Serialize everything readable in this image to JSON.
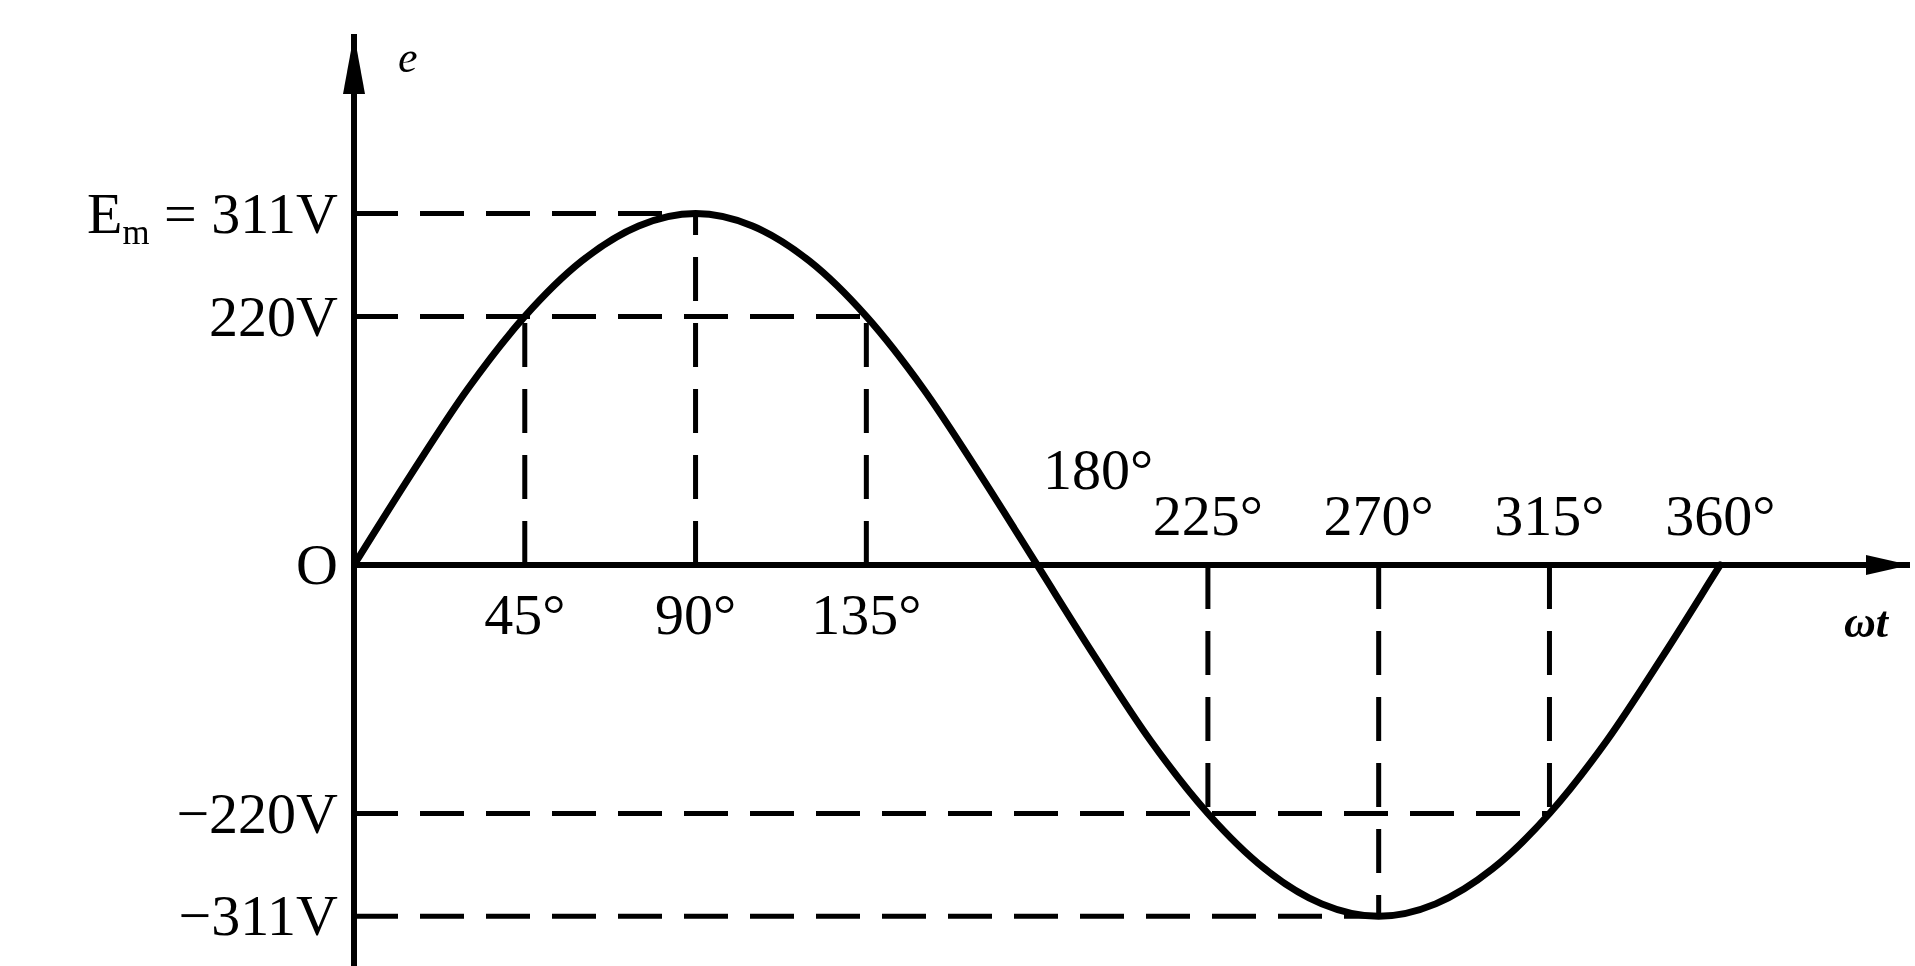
{
  "chart_data": {
    "type": "line",
    "xlabel": "ωt",
    "ylabel": "e",
    "x": [
      0,
      15,
      30,
      45,
      60,
      75,
      90,
      105,
      120,
      135,
      150,
      165,
      180,
      195,
      210,
      225,
      240,
      255,
      270,
      285,
      300,
      315,
      330,
      345,
      360
    ],
    "series": [
      {
        "color": "#000000",
        "values": [
          0,
          80,
          156,
          220,
          269,
          300,
          311,
          300,
          269,
          220,
          156,
          80,
          0,
          -80,
          -156,
          -220,
          -269,
          -300,
          -311,
          -300,
          -269,
          -220,
          -156,
          -80,
          0
        ]
      }
    ],
    "xlim": [
      0,
      410
    ],
    "ylim": [
      -355,
      470
    ],
    "x2lim": [
      0,
      410
    ],
    "xticks": [
      {
        "value": 45,
        "label": "45°"
      },
      {
        "value": 90,
        "label": "90°"
      },
      {
        "value": 135,
        "label": "135°"
      }
    ],
    "x2ticks": [
      {
        "value": 225,
        "label": "225°"
      },
      {
        "value": 270,
        "label": "270°"
      },
      {
        "value": 315,
        "label": "315°"
      },
      {
        "value": 360,
        "label": "360°"
      }
    ],
    "yticks": [
      {
        "value": 311,
        "label": "E$_{m}$ = 311V"
      },
      {
        "value": 220,
        "label": "220V"
      },
      {
        "value": 0,
        "label": "O"
      },
      {
        "value": -220,
        "label": "−220V"
      },
      {
        "value": -311,
        "label": "−311V"
      }
    ],
    "annotations": [
      {
        "text": "180°",
        "x": 180,
        "y": 0
      }
    ],
    "ref_lines": [
      {
        "axis": "y",
        "value": 311,
        "line_style": "dashed",
        "color": "#000000"
      },
      {
        "axis": "y",
        "value": 220,
        "line_style": "dashed",
        "color": "#000000"
      },
      {
        "axis": "y",
        "value": -220,
        "line_style": "dashed",
        "color": "#000000"
      },
      {
        "axis": "y",
        "value": -311,
        "line_style": "dashed",
        "color": "#000000"
      },
      {
        "axis": "x",
        "value": 45,
        "line_style": "dashed",
        "color": "#000000"
      },
      {
        "axis": "x",
        "value": 90,
        "line_style": "dashed",
        "color": "#000000"
      },
      {
        "axis": "x",
        "value": 135,
        "line_style": "dashed",
        "color": "#000000"
      },
      {
        "axis": "x",
        "value": 225,
        "line_style": "dashed",
        "color": "#000000"
      },
      {
        "axis": "x",
        "value": 270,
        "line_style": "dashed",
        "color": "#000000"
      },
      {
        "axis": "x",
        "value": 315,
        "line_style": "dashed",
        "color": "#000000"
      }
    ],
    "grid": false,
    "legend": false,
    "marker": "none",
    "line_style": "solid"
  }
}
